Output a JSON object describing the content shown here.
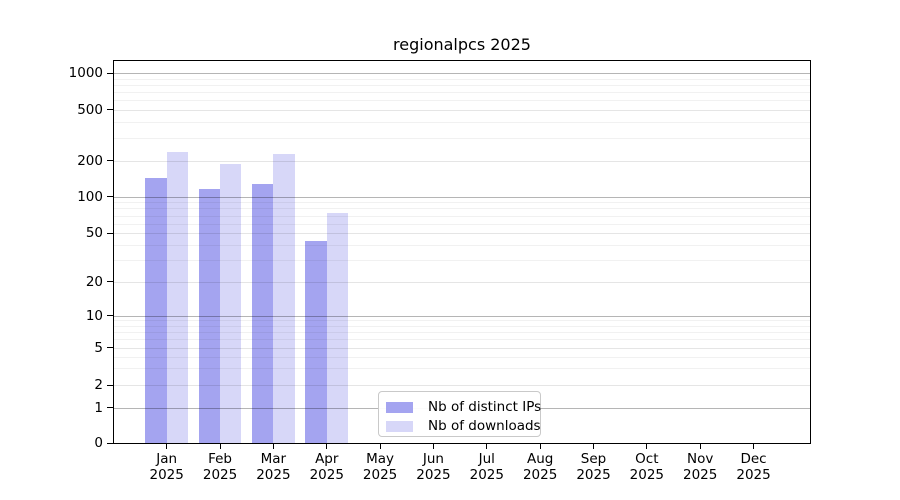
{
  "title": "regionalpcs 2025",
  "chart_data": {
    "type": "bar",
    "categories": [
      "Jan",
      "Feb",
      "Mar",
      "Apr",
      "May",
      "Jun",
      "Jul",
      "Aug",
      "Sep",
      "Oct",
      "Nov",
      "Dec"
    ],
    "year": "2025",
    "series": [
      {
        "name": "Nb of distinct IPs",
        "color": "#a4a4f0",
        "values": [
          142,
          115,
          127,
          43,
          0,
          0,
          0,
          0,
          0,
          0,
          0,
          0
        ]
      },
      {
        "name": "Nb of downloads",
        "color": "#d7d7f8",
        "values": [
          231,
          188,
          224,
          73,
          0,
          0,
          0,
          0,
          0,
          0,
          0,
          0
        ]
      }
    ],
    "yticks": [
      0,
      1,
      2,
      5,
      10,
      20,
      50,
      100,
      200,
      500,
      1000
    ],
    "yscale": "symlog",
    "xlabel": "",
    "ylabel": "",
    "grid": true,
    "legend_position": "lower-left-of-center"
  }
}
